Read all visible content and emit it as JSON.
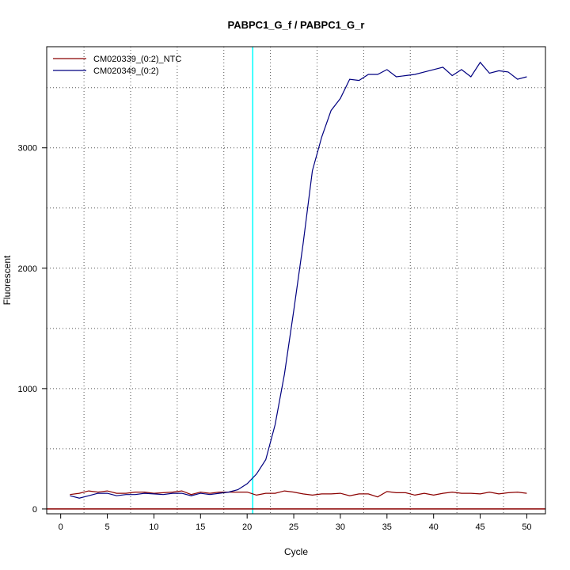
{
  "chart_data": {
    "type": "line",
    "title": "PABPC1_G_f / PABPC1_G_r",
    "xlabel": "Cycle",
    "ylabel": "Fluorescent",
    "xlim": [
      -1.5,
      52
    ],
    "ylim": [
      -40,
      3840
    ],
    "x_ticks": [
      0,
      5,
      10,
      15,
      20,
      25,
      30,
      35,
      40,
      45,
      50
    ],
    "y_ticks": [
      0,
      1000,
      2000,
      3000
    ],
    "x_grid": [
      2.5,
      7.5,
      12.5,
      17.5,
      22.5,
      27.5,
      32.5,
      37.5,
      42.5,
      47.5
    ],
    "y_grid": [
      500,
      1000,
      1500,
      2000,
      2500,
      3000,
      3500
    ],
    "legend_position": "top-left",
    "threshold_cycle": 20.6,
    "threshold_color": "#00ffff",
    "baseline": 0,
    "baseline_color": "#8b0000",
    "series": [
      {
        "name": "CM020339_(0:2)_NTC",
        "color": "#8b0000",
        "x": [
          1,
          2,
          3,
          4,
          5,
          6,
          7,
          8,
          9,
          10,
          11,
          12,
          13,
          14,
          15,
          16,
          17,
          18,
          19,
          20,
          21,
          22,
          23,
          24,
          25,
          26,
          27,
          28,
          29,
          30,
          31,
          32,
          33,
          34,
          35,
          36,
          37,
          38,
          39,
          40,
          41,
          42,
          43,
          44,
          45,
          46,
          47,
          48,
          49,
          50
        ],
        "values": [
          120,
          130,
          150,
          140,
          150,
          130,
          130,
          140,
          140,
          130,
          135,
          140,
          150,
          120,
          140,
          130,
          140,
          140,
          140,
          140,
          115,
          130,
          130,
          150,
          140,
          125,
          115,
          125,
          125,
          130,
          110,
          125,
          125,
          100,
          145,
          135,
          135,
          115,
          130,
          115,
          130,
          140,
          130,
          130,
          125,
          140,
          125,
          135,
          140,
          130
        ]
      },
      {
        "name": "CM020349_(0:2)",
        "color": "#000080",
        "x": [
          1,
          2,
          3,
          4,
          5,
          6,
          7,
          8,
          9,
          10,
          11,
          12,
          13,
          14,
          15,
          16,
          17,
          18,
          19,
          20,
          21,
          22,
          23,
          24,
          25,
          26,
          27,
          28,
          29,
          30,
          31,
          32,
          33,
          34,
          35,
          36,
          37,
          38,
          39,
          40,
          41,
          42,
          43,
          44,
          45,
          46,
          47,
          48,
          49,
          50
        ],
        "values": [
          110,
          90,
          110,
          130,
          130,
          110,
          120,
          120,
          130,
          125,
          120,
          130,
          130,
          110,
          130,
          120,
          130,
          140,
          160,
          210,
          290,
          410,
          700,
          1120,
          1650,
          2200,
          2810,
          3090,
          3310,
          3410,
          3570,
          3560,
          3610,
          3610,
          3650,
          3590,
          3600,
          3610,
          3630,
          3650,
          3670,
          3600,
          3650,
          3590,
          3710,
          3620,
          3640,
          3630,
          3570,
          3590
        ]
      }
    ]
  }
}
